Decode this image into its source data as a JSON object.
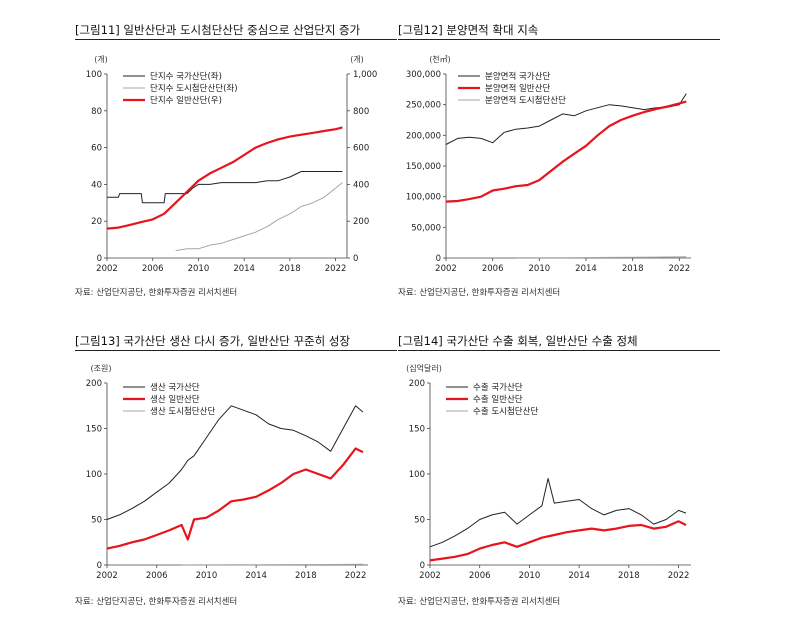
{
  "panels": [
    {
      "title": "[그림11]  일반산단과 도시첨단산단 중심으로 산업단지 증가",
      "source": "자료: 산업단지공단, 한화투자증권 리서치센터"
    },
    {
      "title": "[그림12]  분양면적 확대 지속",
      "source": "자료: 산업단지공단, 한화투자증권 리서치센터"
    },
    {
      "title": "[그림13]  국가산단 생산 다시 증가, 일반산단 꾸준히 성장",
      "source": "자료: 산업단지공단, 한화투자증권 리서치센터"
    },
    {
      "title": "[그림14]  국가산단 수출 회복, 일반산단 수출 정체",
      "source": "자료: 산업단지공단, 한화투자증권 리서치센터"
    }
  ],
  "chart_data": [
    {
      "type": "line",
      "unit_left": "(개)",
      "unit_right": "(개)",
      "xlim": [
        2002,
        2023
      ],
      "xticks": [
        "2002",
        "2006",
        "2010",
        "2014",
        "2018",
        "2022"
      ],
      "ylim_left": [
        0,
        100
      ],
      "yticks_left": [
        "0",
        "20",
        "40",
        "60",
        "80",
        "100"
      ],
      "ylim_right": [
        0,
        1000
      ],
      "yticks_right": [
        "0",
        "200",
        "400",
        "600",
        "800",
        "1,000"
      ],
      "series": [
        {
          "name": "단지수   국가산단(좌)",
          "axis": "left",
          "color": "#222222",
          "x": [
            2002,
            2003,
            2003.1,
            2005,
            2005.1,
            2007,
            2007.1,
            2009,
            2009.5,
            2010,
            2011,
            2012,
            2013,
            2014,
            2015,
            2016,
            2017,
            2018,
            2019,
            2020,
            2021,
            2022,
            2022.6
          ],
          "y": [
            33,
            33,
            35,
            35,
            30,
            30,
            35,
            35,
            38,
            40,
            40,
            41,
            41,
            41,
            41,
            42,
            42,
            44,
            47,
            47,
            47,
            47,
            47
          ]
        },
        {
          "name": "단지수   도시첨단산단(좌)",
          "axis": "left",
          "color": "#a6a6a6",
          "x": [
            2008,
            2009,
            2010,
            2011,
            2012,
            2013,
            2014,
            2015,
            2016,
            2017,
            2018,
            2019,
            2020,
            2021,
            2022,
            2022.6
          ],
          "y": [
            4,
            5,
            5,
            7,
            8,
            10,
            12,
            14,
            17,
            21,
            24,
            28,
            30,
            33,
            38,
            41
          ]
        },
        {
          "name": "단지수   일반산단(우)",
          "axis": "right",
          "color": "#e8141b",
          "x": [
            2002,
            2003,
            2004,
            2005,
            2006,
            2007,
            2008,
            2009,
            2010,
            2011,
            2012,
            2013,
            2014,
            2015,
            2016,
            2017,
            2018,
            2019,
            2020,
            2021,
            2022,
            2022.6
          ],
          "y": [
            160,
            165,
            180,
            195,
            210,
            240,
            300,
            360,
            420,
            460,
            490,
            520,
            560,
            600,
            625,
            645,
            660,
            670,
            680,
            690,
            700,
            710
          ]
        }
      ]
    },
    {
      "type": "line",
      "unit_left": "(천㎡)",
      "xlim": [
        2002,
        2023
      ],
      "xticks": [
        "2002",
        "2006",
        "2010",
        "2014",
        "2018",
        "2022"
      ],
      "ylim_left": [
        0,
        300000
      ],
      "yticks_left": [
        "0",
        "50,000",
        "100,000",
        "150,000",
        "200,000",
        "250,000",
        "300,000"
      ],
      "series": [
        {
          "name": "분양면적   국가산단",
          "axis": "left",
          "color": "#222222",
          "x": [
            2002,
            2003,
            2004,
            2005,
            2006,
            2007,
            2008,
            2009,
            2010,
            2011,
            2012,
            2013,
            2014,
            2015,
            2016,
            2017,
            2018,
            2019,
            2020,
            2021,
            2022,
            2022.6
          ],
          "y": [
            185000,
            195000,
            197000,
            195000,
            188000,
            205000,
            210000,
            212000,
            215000,
            225000,
            235000,
            232000,
            240000,
            245000,
            250000,
            248000,
            245000,
            242000,
            245000,
            246000,
            250000,
            268000
          ]
        },
        {
          "name": "분양면적   일반산단",
          "axis": "left",
          "color": "#e8141b",
          "x": [
            2002,
            2003,
            2004,
            2005,
            2006,
            2007,
            2008,
            2009,
            2010,
            2011,
            2012,
            2013,
            2014,
            2015,
            2016,
            2017,
            2018,
            2019,
            2020,
            2021,
            2022,
            2022.6
          ],
          "y": [
            92000,
            93000,
            96000,
            100000,
            110000,
            113000,
            117000,
            119000,
            127000,
            142000,
            157000,
            170000,
            183000,
            200000,
            215000,
            225000,
            232000,
            238000,
            243000,
            247000,
            252000,
            255000
          ]
        },
        {
          "name": "분양면적   도시첨단산단",
          "axis": "left",
          "color": "#a6a6a6",
          "x": [
            2008,
            2012,
            2016,
            2020,
            2022.6
          ],
          "y": [
            300,
            500,
            900,
            1500,
            2200
          ]
        }
      ]
    },
    {
      "type": "line",
      "unit_left": "(조원)",
      "xlim": [
        2002,
        2023
      ],
      "xticks": [
        "2002",
        "2006",
        "2010",
        "2014",
        "2018",
        "2022"
      ],
      "ylim_left": [
        0,
        200
      ],
      "yticks_left": [
        "0",
        "50",
        "100",
        "150",
        "200"
      ],
      "series": [
        {
          "name": "생산   국가산단",
          "axis": "left",
          "color": "#222222",
          "x": [
            2002,
            2003,
            2004,
            2005,
            2006,
            2007,
            2008,
            2008.5,
            2009,
            2010,
            2011,
            2012,
            2013,
            2014,
            2015,
            2016,
            2017,
            2018,
            2019,
            2020,
            2021,
            2022,
            2022.6
          ],
          "y": [
            50,
            55,
            62,
            70,
            80,
            90,
            105,
            115,
            120,
            140,
            160,
            175,
            170,
            165,
            155,
            150,
            148,
            142,
            135,
            125,
            150,
            175,
            168
          ]
        },
        {
          "name": "생산   일반산단",
          "axis": "left",
          "color": "#e8141b",
          "x": [
            2002,
            2003,
            2004,
            2005,
            2006,
            2007,
            2008,
            2008.5,
            2009,
            2010,
            2011,
            2012,
            2013,
            2014,
            2015,
            2016,
            2017,
            2018,
            2019,
            2020,
            2021,
            2022,
            2022.6
          ],
          "y": [
            18,
            21,
            25,
            28,
            33,
            38,
            44,
            28,
            50,
            52,
            60,
            70,
            72,
            75,
            82,
            90,
            100,
            105,
            100,
            95,
            110,
            128,
            124
          ]
        },
        {
          "name": "생산   도시첨단산단",
          "axis": "left",
          "color": "#a6a6a6",
          "x": [
            2008,
            2012,
            2016,
            2020,
            2022.6
          ],
          "y": [
            0.1,
            0.2,
            0.4,
            0.6,
            0.9
          ]
        }
      ]
    },
    {
      "type": "line",
      "unit_left": "(십억달러)",
      "xlim": [
        2002,
        2023
      ],
      "xticks": [
        "2002",
        "2006",
        "2010",
        "2014",
        "2018",
        "2022"
      ],
      "ylim_left": [
        0,
        200
      ],
      "yticks_left": [
        "0",
        "50",
        "100",
        "150",
        "200"
      ],
      "series": [
        {
          "name": "수출   국가산단",
          "axis": "left",
          "color": "#222222",
          "x": [
            2002,
            2003,
            2004,
            2005,
            2006,
            2007,
            2008,
            2009,
            2010,
            2011,
            2011.5,
            2012,
            2013,
            2014,
            2015,
            2016,
            2017,
            2018,
            2019,
            2020,
            2021,
            2022,
            2022.6
          ],
          "y": [
            20,
            25,
            32,
            40,
            50,
            55,
            58,
            45,
            55,
            65,
            95,
            68,
            70,
            72,
            62,
            55,
            60,
            62,
            55,
            45,
            50,
            60,
            57
          ]
        },
        {
          "name": "수출   일반산단",
          "axis": "left",
          "color": "#e8141b",
          "x": [
            2002,
            2003,
            2004,
            2005,
            2006,
            2007,
            2008,
            2009,
            2010,
            2011,
            2012,
            2013,
            2014,
            2015,
            2016,
            2017,
            2018,
            2019,
            2020,
            2021,
            2022,
            2022.6
          ],
          "y": [
            5,
            7,
            9,
            12,
            18,
            22,
            25,
            20,
            25,
            30,
            33,
            36,
            38,
            40,
            38,
            40,
            43,
            44,
            40,
            42,
            48,
            44
          ]
        },
        {
          "name": "수출   도시첨단산단",
          "axis": "left",
          "color": "#a6a6a6",
          "x": [
            2018,
            2019,
            2020,
            2022.6
          ],
          "y": [
            0.2,
            0.3,
            0.3,
            0.4
          ]
        }
      ]
    }
  ]
}
